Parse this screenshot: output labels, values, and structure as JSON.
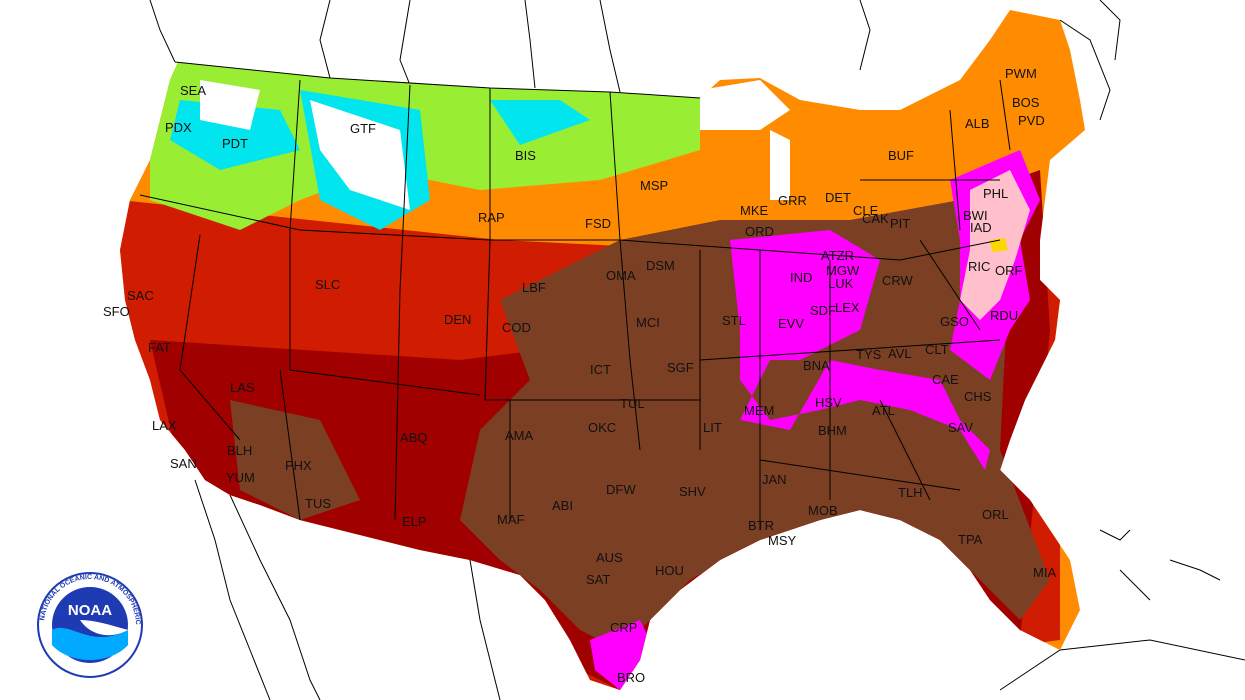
{
  "colors": {
    "extreme_heat": "#7b3f23",
    "very_hot": "#a00000",
    "hot": "#d01c00",
    "warm": "#ee5a00",
    "mild_warm": "#ff8c00",
    "mild": "#ff9a2a",
    "cool": "#99ee33",
    "cold": "#00e5ee",
    "record_heat": "#ff00ff",
    "peak_heat": "#ffc0cb",
    "small_patch": "#ffd700",
    "background": "#ffffff",
    "borders": "#000000",
    "noaa_blue": "#1f3bb3"
  },
  "cities": [
    {
      "code": "SEA"
    },
    {
      "code": "PDX"
    },
    {
      "code": "PDT"
    },
    {
      "code": "GTF"
    },
    {
      "code": "BIS"
    },
    {
      "code": "MSP"
    },
    {
      "code": "FSD"
    },
    {
      "code": "RAP"
    },
    {
      "code": "SAC"
    },
    {
      "code": "SFO"
    },
    {
      "code": "FAT"
    },
    {
      "code": "SLC"
    },
    {
      "code": "DEN"
    },
    {
      "code": "LBF"
    },
    {
      "code": "OMA"
    },
    {
      "code": "DSM"
    },
    {
      "code": "MKE"
    },
    {
      "code": "GRR"
    },
    {
      "code": "DET"
    },
    {
      "code": "CLE"
    },
    {
      "code": "CAK"
    },
    {
      "code": "PIT"
    },
    {
      "code": "ORD"
    },
    {
      "code": "IND"
    },
    {
      "code": "MCI"
    },
    {
      "code": "STL"
    },
    {
      "code": "EVV"
    },
    {
      "code": "SDF"
    },
    {
      "code": "LEX"
    },
    {
      "code": "MGW"
    },
    {
      "code": "LUK"
    },
    {
      "code": "CRW"
    },
    {
      "code": "LAS"
    },
    {
      "code": "LAX"
    },
    {
      "code": "SAN"
    },
    {
      "code": "BLH"
    },
    {
      "code": "YUM"
    },
    {
      "code": "PHX"
    },
    {
      "code": "TUS"
    },
    {
      "code": "ABQ"
    },
    {
      "code": "ELP"
    },
    {
      "code": "AMA"
    },
    {
      "code": "ABI"
    },
    {
      "code": "MAF"
    },
    {
      "code": "COD"
    },
    {
      "code": "ICT"
    },
    {
      "code": "SGF"
    },
    {
      "code": "TUL"
    },
    {
      "code": "OKC"
    },
    {
      "code": "LIT"
    },
    {
      "code": "MEM"
    },
    {
      "code": "BNA"
    },
    {
      "code": "HSV"
    },
    {
      "code": "ATL"
    },
    {
      "code": "BHM"
    },
    {
      "code": "DFW"
    },
    {
      "code": "SHV"
    },
    {
      "code": "JAN"
    },
    {
      "code": "AUS"
    },
    {
      "code": "SAT"
    },
    {
      "code": "HOU"
    },
    {
      "code": "BTR"
    },
    {
      "code": "MSY"
    },
    {
      "code": "MOB"
    },
    {
      "code": "TLH"
    },
    {
      "code": "CRP"
    },
    {
      "code": "BRO"
    },
    {
      "code": "ORL"
    },
    {
      "code": "TPA"
    },
    {
      "code": "MIA"
    },
    {
      "code": "CHS"
    },
    {
      "code": "CAE"
    },
    {
      "code": "SAV"
    },
    {
      "code": "CLT"
    },
    {
      "code": "AVL"
    },
    {
      "code": "TYS"
    },
    {
      "code": "GSO"
    },
    {
      "code": "RDU"
    },
    {
      "code": "RIC"
    },
    {
      "code": "ORF"
    },
    {
      "code": "PHL"
    },
    {
      "code": "BWI"
    },
    {
      "code": "IAD"
    },
    {
      "code": "BUF"
    },
    {
      "code": "ALB"
    },
    {
      "code": "PWM"
    },
    {
      "code": "BOS"
    },
    {
      "code": "PVD"
    },
    {
      "code": "ATZR"
    }
  ],
  "logo": {
    "acronym": "NOAA",
    "arc_text": "NATIONAL OCEANIC AND ATMOSPHERIC ADMINISTRATION"
  }
}
